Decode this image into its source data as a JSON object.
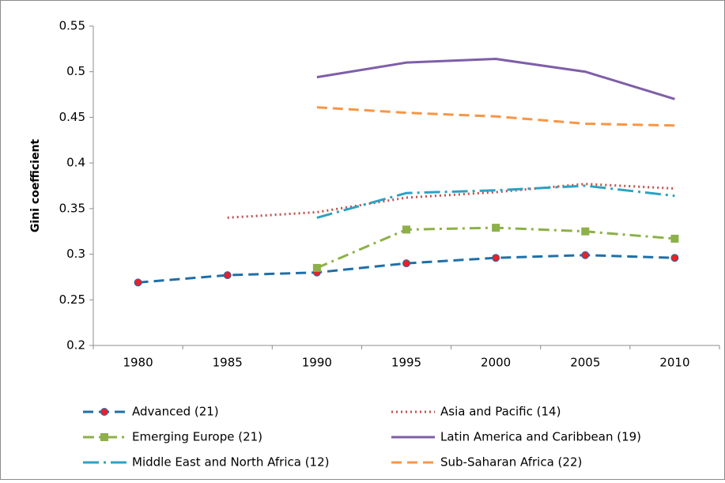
{
  "chart_data": {
    "type": "line",
    "y_label": "Gini coefficient",
    "categories": [
      "1980",
      "1985",
      "1990",
      "1995",
      "2000",
      "2005",
      "2010"
    ],
    "ylim": [
      0.2,
      0.55
    ],
    "yticks": [
      0.2,
      0.25,
      0.3,
      0.35,
      0.4,
      0.45,
      0.5,
      0.55
    ],
    "grid": false,
    "legend": "bottom",
    "series": [
      {
        "name": "Advanced (21)",
        "color": "#1f6fa8",
        "dash": "dashed",
        "marker": "circle",
        "marker_color": "#e8202a",
        "values": [
          0.269,
          0.277,
          0.28,
          0.29,
          0.296,
          0.299,
          0.296
        ]
      },
      {
        "name": "Asia and Pacific (14)",
        "color": "#c0504d",
        "dash": "dotted",
        "marker": "none",
        "values": [
          null,
          0.34,
          0.346,
          0.362,
          0.368,
          0.377,
          0.372
        ]
      },
      {
        "name": "Emerging Europe (21)",
        "color": "#8db048",
        "dash": "dash-dot",
        "marker": "square",
        "marker_color": "#8db048",
        "values": [
          null,
          null,
          0.285,
          0.327,
          0.329,
          0.325,
          0.317
        ]
      },
      {
        "name": "Latin America and Caribbean (19)",
        "color": "#7f5ea8",
        "dash": "solid",
        "marker": "none",
        "values": [
          null,
          null,
          0.494,
          0.51,
          0.514,
          0.5,
          0.47
        ]
      },
      {
        "name": "Middle East and North Africa (12)",
        "color": "#2ba3c1",
        "dash": "long-dash-dot",
        "marker": "none",
        "values": [
          null,
          null,
          0.34,
          0.367,
          0.37,
          0.375,
          0.364
        ]
      },
      {
        "name": "Sub-Saharan Africa (22)",
        "color": "#f79646",
        "dash": "dashed",
        "marker": "none",
        "values": [
          null,
          null,
          0.461,
          0.455,
          0.451,
          0.443,
          0.441
        ]
      }
    ]
  }
}
